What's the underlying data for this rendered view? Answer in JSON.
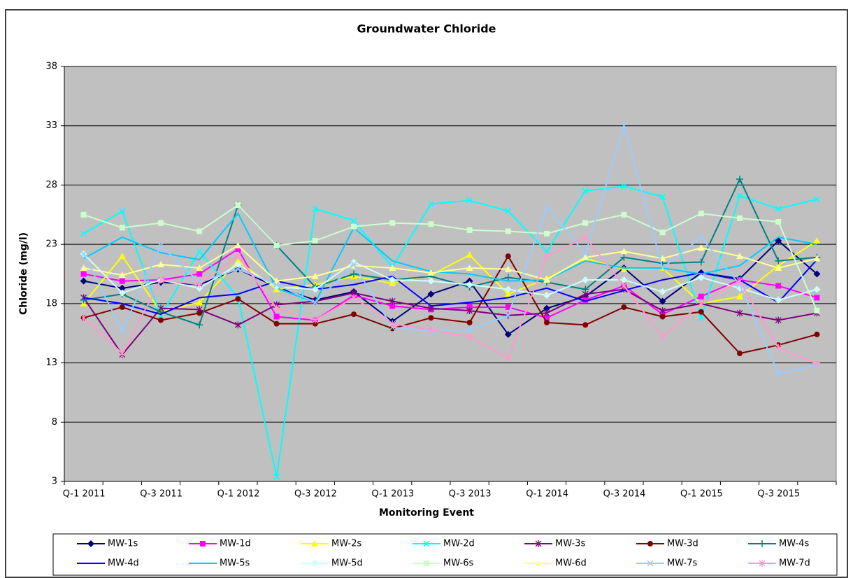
{
  "chart_data": {
    "type": "line",
    "title": "Groundwater Chloride",
    "x_label": "Monitoring Event",
    "y_label": "Chloride (mg/l)",
    "categories": [
      "Q-1 2011",
      null,
      "Q-3 2011",
      null,
      "Q-1 2012",
      null,
      "Q-3 2012",
      null,
      "Q-1 2013",
      null,
      "Q-3 2013",
      null,
      "Q-1 2014",
      null,
      "Q-3 2014",
      null,
      "Q-1 2015",
      null,
      "Q-3 2015",
      null
    ],
    "ylim": [
      3,
      38
    ],
    "yticks": [
      3,
      8,
      13,
      18,
      23,
      28,
      33,
      38
    ],
    "grid": true,
    "series": [
      {
        "name": "MW-1s",
        "color": "#000080",
        "marker": "diamond",
        "values": [
          19.9,
          19.3,
          19.8,
          19.6,
          20.9,
          19.4,
          18.3,
          19.0,
          16.5,
          18.8,
          19.9,
          15.4,
          17.6,
          18.6,
          21.0,
          18.2,
          20.6,
          20.1,
          23.3,
          20.5
        ]
      },
      {
        "name": "MW-1d",
        "color": "#ff00ff",
        "marker": "square",
        "values": [
          20.5,
          19.9,
          20.0,
          20.5,
          22.6,
          16.9,
          16.6,
          18.7,
          17.8,
          17.5,
          17.7,
          17.7,
          16.8,
          18.3,
          19.5,
          17.1,
          18.6,
          20.0,
          19.5,
          18.5
        ]
      },
      {
        "name": "MW-2s",
        "color": "#ffff00",
        "marker": "triangle",
        "values": [
          18.0,
          22.0,
          17.3,
          18.1,
          21.6,
          19.2,
          19.6,
          20.3,
          19.7,
          20.4,
          22.1,
          18.8,
          20.1,
          21.8,
          20.9,
          21.0,
          18.0,
          18.6,
          21.2,
          23.3
        ]
      },
      {
        "name": "MW-2d",
        "color": "#00ffff",
        "marker": "x",
        "values": [
          23.9,
          25.8,
          17.0,
          22.4,
          18.5,
          3.4,
          26.0,
          25.0,
          21.1,
          26.4,
          26.7,
          25.8,
          22.4,
          27.5,
          27.9,
          27.0,
          16.8,
          27.1,
          26.0,
          26.8
        ]
      },
      {
        "name": "MW-3s",
        "color": "#800080",
        "marker": "star",
        "values": [
          18.5,
          13.7,
          17.6,
          17.5,
          16.2,
          17.9,
          18.2,
          18.9,
          18.2,
          17.6,
          17.4,
          17.0,
          17.2,
          18.8,
          19.2,
          17.4,
          18.0,
          17.2,
          16.6,
          17.2
        ]
      },
      {
        "name": "MW-3d",
        "color": "#800000",
        "marker": "circle",
        "values": [
          16.8,
          17.7,
          16.6,
          17.2,
          18.4,
          16.3,
          16.3,
          17.1,
          15.9,
          16.8,
          16.4,
          22.0,
          16.4,
          16.2,
          17.7,
          16.9,
          17.3,
          13.8,
          14.5,
          15.4
        ]
      },
      {
        "name": "MW-4s",
        "color": "#008080",
        "marker": "plus",
        "values": [
          18.3,
          18.8,
          17.3,
          16.2,
          26.3,
          22.9,
          19.4,
          20.5,
          20.0,
          20.3,
          19.4,
          20.2,
          19.8,
          19.2,
          21.9,
          21.4,
          21.5,
          28.5,
          21.6,
          21.9
        ]
      },
      {
        "name": "MW-4d",
        "color": "#0000ff",
        "marker": "none",
        "values": [
          18.5,
          18.0,
          17.1,
          18.5,
          18.8,
          19.9,
          19.2,
          19.6,
          20.3,
          17.8,
          18.1,
          18.5,
          19.3,
          18.2,
          19.1,
          20.0,
          20.6,
          20.0,
          18.1,
          21.7
        ]
      },
      {
        "name": "MW-5s",
        "color": "#00ccff",
        "marker": "none",
        "values": [
          21.8,
          23.6,
          22.3,
          21.7,
          25.6,
          19.3,
          18.1,
          24.4,
          21.6,
          20.7,
          20.5,
          19.9,
          20.0,
          21.6,
          21.0,
          21.0,
          20.5,
          21.2,
          23.6,
          23.0
        ]
      },
      {
        "name": "MW-5d",
        "color": "#ccffff",
        "marker": "diamond",
        "values": [
          22.2,
          18.9,
          20.0,
          19.3,
          21.3,
          19.4,
          19.2,
          21.5,
          20.0,
          19.9,
          19.6,
          19.2,
          18.7,
          20.0,
          20.0,
          19.0,
          20.2,
          19.3,
          18.3,
          19.2
        ]
      },
      {
        "name": "MW-6s",
        "color": "#ccffcc",
        "marker": "square",
        "values": [
          25.5,
          24.4,
          24.8,
          24.1,
          26.3,
          22.9,
          23.3,
          24.5,
          24.8,
          24.7,
          24.2,
          24.1,
          23.9,
          24.8,
          25.5,
          24.0,
          25.6,
          25.2,
          24.9,
          17.4
        ]
      },
      {
        "name": "MW-6d",
        "color": "#ffff99",
        "marker": "triangle",
        "values": [
          21.0,
          20.4,
          21.3,
          21.0,
          22.9,
          19.9,
          20.3,
          21.2,
          21.0,
          20.6,
          21.0,
          20.9,
          20.0,
          21.9,
          22.4,
          21.8,
          22.7,
          22.0,
          21.0,
          21.8
        ]
      },
      {
        "name": "MW-7s",
        "color": "#99ccff",
        "marker": "x",
        "values": [
          22.2,
          15.7,
          22.9,
          19.8,
          20.9,
          19.6,
          18.1,
          21.3,
          16.0,
          15.7,
          15.8,
          17.0,
          26.1,
          22.2,
          33.0,
          21.0,
          23.6,
          19.6,
          12.1,
          12.8
        ]
      },
      {
        "name": "MW-7d",
        "color": "#ff99cc",
        "marker": "star",
        "values": [
          16.8,
          13.8,
          20.0,
          19.6,
          22.0,
          17.6,
          16.6,
          18.5,
          16.3,
          15.8,
          15.2,
          13.4,
          22.0,
          23.6,
          19.5,
          15.2,
          18.0,
          19.9,
          14.3,
          12.9
        ]
      }
    ]
  }
}
